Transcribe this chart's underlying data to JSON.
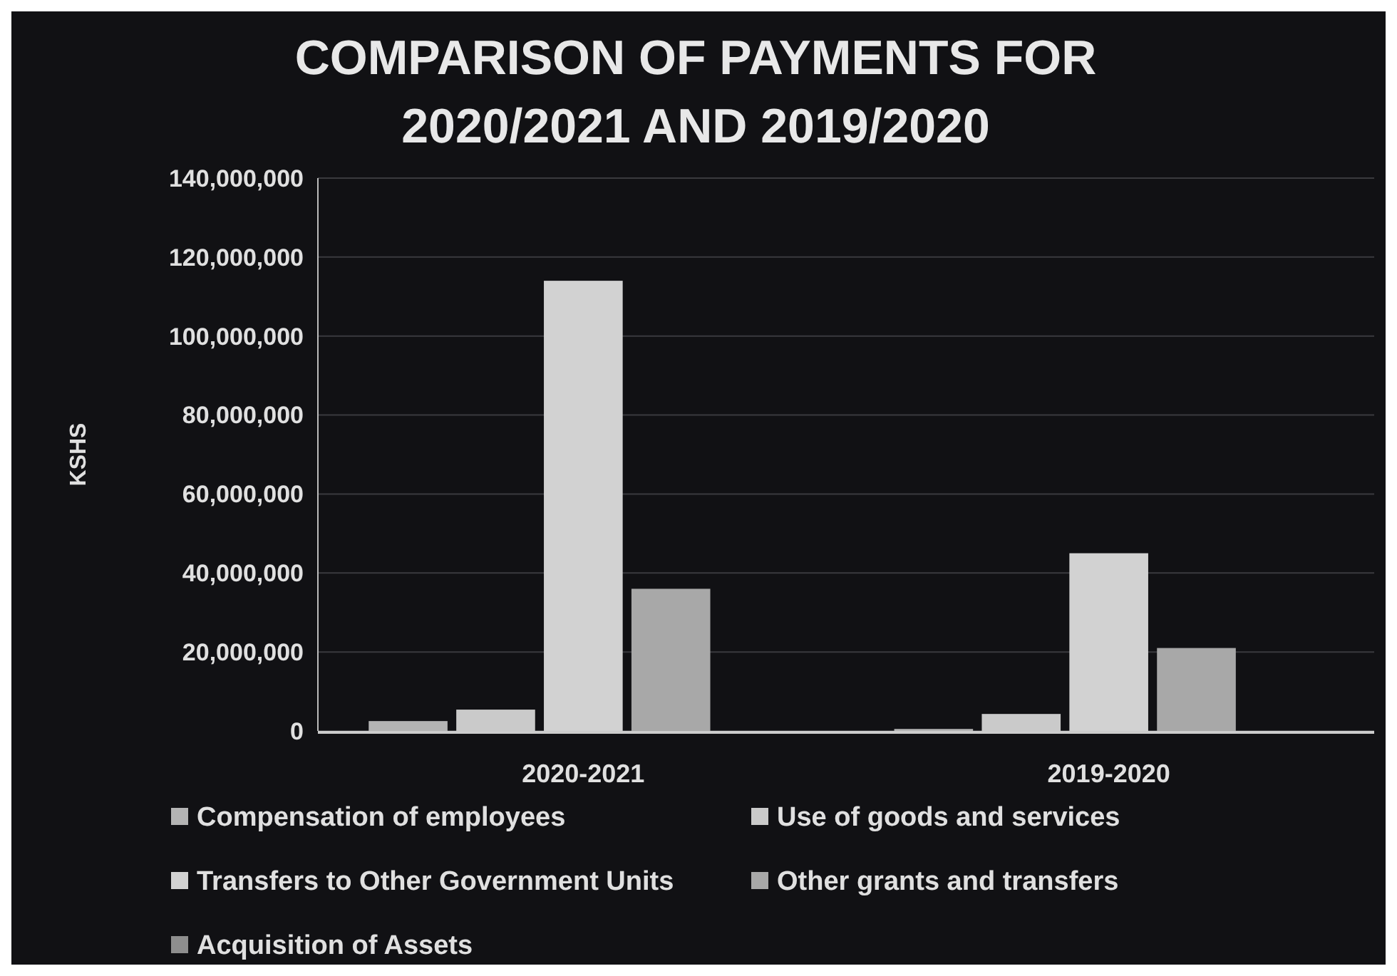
{
  "chart_data": {
    "type": "bar",
    "title": "COMPARISON OF PAYMENTS FOR 2020/2021 AND 2019/2020",
    "ylabel": "KSHS",
    "categories": [
      "2020-2021",
      "2019-2020"
    ],
    "series": [
      {
        "name": "Compensation of employees",
        "color": "#b4b4b4",
        "values": [
          2500000,
          500000
        ]
      },
      {
        "name": "Use of goods and services",
        "color": "#cacaca",
        "values": [
          5400000,
          4300000
        ]
      },
      {
        "name": "Transfers to Other Government Units",
        "color": "#d2d2d2",
        "values": [
          114000000,
          45000000
        ]
      },
      {
        "name": "Other grants and transfers",
        "color": "#a8a8a8",
        "values": [
          36000000,
          21000000
        ]
      },
      {
        "name": "Acquisition of Assets",
        "color": "#8e8e8e",
        "values": [
          0,
          0
        ]
      }
    ],
    "ylim": [
      0,
      140000000
    ],
    "yticks": [
      {
        "value": 0,
        "label": "0"
      },
      {
        "value": 20000000,
        "label": "20,000,000"
      },
      {
        "value": 40000000,
        "label": "40,000,000"
      },
      {
        "value": 60000000,
        "label": "60,000,000"
      },
      {
        "value": 80000000,
        "label": "80,000,000"
      },
      {
        "value": 100000000,
        "label": "100,000,000"
      },
      {
        "value": 120000000,
        "label": "120,000,000"
      },
      {
        "value": 140000000,
        "label": "140,000,000"
      }
    ],
    "grid": "y",
    "legend": "bottom"
  }
}
